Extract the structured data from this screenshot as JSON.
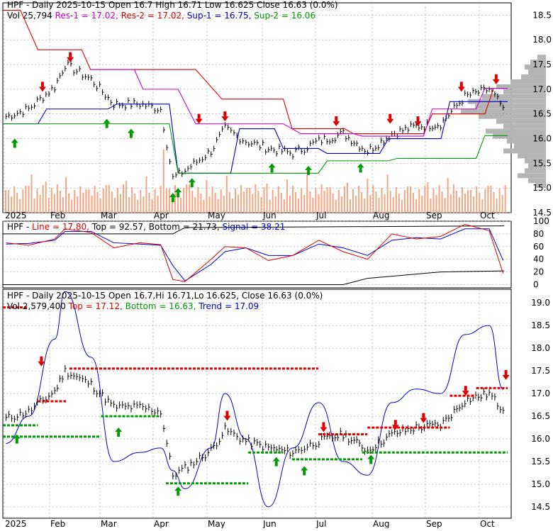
{
  "header": {
    "ticker": "HPF",
    "line1": "HPF - Daily 2025-10-15 Open 16.7  High 16.71  Low 16.625  Close 16.63 (0.0%)",
    "line2": [
      {
        "text": "Vol 25,794",
        "color": "#000000"
      },
      {
        "text": "Res-1 = 17.02,",
        "color": "#cc00cc"
      },
      {
        "text": "Res-2 = 17.02,",
        "color": "#dd0000"
      },
      {
        "text": "Sup-1 = 16.75,",
        "color": "#0000cc"
      },
      {
        "text": "Sup-2 = 16.06",
        "color": "#009900"
      }
    ]
  },
  "osc_header": [
    {
      "text": "HPF -",
      "color": "#000000"
    },
    {
      "text": "Line = 17.80,",
      "color": "#dd0000"
    },
    {
      "text": "Top = 92.57,",
      "color": "#000000"
    },
    {
      "text": "Bottom = 21.73,",
      "color": "#000000"
    },
    {
      "text": "Signal = 38.21",
      "color": "#0000cc"
    }
  ],
  "lower_header": {
    "line1": "HPF - Daily 2025-10-15 Open 16.7,Hi 16.71,Lo 16.625, Close 16.63 (0.0%)",
    "line2": [
      {
        "text": "Vol 2,579,400",
        "color": "#000000"
      },
      {
        "text": "Top = 17.12,",
        "color": "#dd0000"
      },
      {
        "text": "Bottom = 16.63,",
        "color": "#009900"
      },
      {
        "text": "Trend = 17.09",
        "color": "#0000cc"
      }
    ]
  },
  "colors": {
    "red": "#dd0000",
    "green": "#009900",
    "blue": "#0000cc",
    "magenta": "#cc00cc",
    "volume": "#f4a582",
    "profile": "#b4b4b4"
  },
  "chart_data": [
    {
      "type": "line",
      "panel": "price",
      "x": [
        "Jan 02",
        "Jan 15",
        "Jan 30",
        "Feb 05",
        "Feb 20",
        "Mar 05",
        "Mar 20",
        "Apr 01",
        "Apr 08",
        "Apr 15",
        "Apr 30",
        "May 08",
        "May 20",
        "Jun 02",
        "Jun 16",
        "Jul 01",
        "Jul 15",
        "Jul 29",
        "Aug 12",
        "Aug 26",
        "Sep 09",
        "Sep 23",
        "Oct 07",
        "Oct 15"
      ],
      "series": [
        {
          "values": [
            16.45,
            16.6,
            17.05,
            17.5,
            17.2,
            16.7,
            16.7,
            16.6,
            15.2,
            15.35,
            15.75,
            16.2,
            15.95,
            15.8,
            15.7,
            15.95,
            16.1,
            15.75,
            16.1,
            16.25,
            16.3,
            16.85,
            17.0,
            16.63
          ]
        }
      ],
      "volume_axis": "unlabeled",
      "ylim": [
        14.5,
        18.75
      ],
      "yticks": [
        14.5,
        15.0,
        15.5,
        16.0,
        16.5,
        17.0,
        17.5,
        18.0,
        18.5
      ],
      "xlabels": [
        "2025",
        "Feb",
        "Mar",
        "Apr",
        "May",
        "Jun",
        "Jul",
        "Aug",
        "Sep",
        "Oct"
      ],
      "arrows_down": [
        [
          "Jan 22",
          16.95
        ],
        [
          "Feb 07",
          17.55
        ],
        [
          "Apr 22",
          16.3
        ],
        [
          "May 07",
          16.35
        ],
        [
          "Jul 10",
          16.25
        ],
        [
          "Aug 10",
          16.3
        ],
        [
          "Aug 26",
          16.25
        ],
        [
          "Sep 20",
          16.95
        ],
        [
          "Oct 10",
          17.1
        ]
      ],
      "arrows_up": [
        [
          "Jan 06",
          16.0
        ],
        [
          "Feb 28",
          16.4
        ],
        [
          "Mar 14",
          16.2
        ],
        [
          "Apr 07",
          14.9
        ],
        [
          "Apr 10",
          15.0
        ],
        [
          "Apr 18",
          15.2
        ],
        [
          "Jun 03",
          15.5
        ],
        [
          "Jun 24",
          15.45
        ],
        [
          "Jul 24",
          15.5
        ]
      ]
    },
    {
      "type": "line",
      "panel": "oscillator",
      "ylim": [
        -5,
        100
      ],
      "yticks": [
        0,
        20,
        40,
        60,
        80,
        100
      ],
      "series": [
        {
          "name": "Line",
          "values": [
            66,
            62,
            72,
            88,
            82,
            58,
            66,
            63,
            8,
            5,
            40,
            60,
            58,
            38,
            46,
            70,
            52,
            40,
            80,
            72,
            76,
            95,
            85,
            17.8
          ]
        },
        {
          "name": "Signal",
          "values": [
            64,
            65,
            70,
            84,
            84,
            66,
            64,
            62,
            30,
            6,
            32,
            52,
            58,
            46,
            46,
            64,
            58,
            46,
            70,
            74,
            72,
            88,
            88,
            38.21
          ]
        }
      ],
      "top": 92.57,
      "bottom": 21.73
    },
    {
      "type": "line",
      "panel": "trend",
      "ylim": [
        14.25,
        19.3
      ],
      "yticks": [
        14.5,
        15.0,
        15.5,
        16.0,
        16.5,
        17.0,
        17.5,
        18.0,
        18.5,
        19.0
      ],
      "xlabels": [
        "2025",
        "Feb",
        "Mar",
        "Apr",
        "May",
        "Jun",
        "Jul",
        "Aug",
        "Sep",
        "Oct"
      ],
      "series": [
        {
          "name": "Price",
          "values": [
            16.45,
            16.6,
            17.05,
            17.5,
            17.2,
            16.7,
            16.7,
            16.6,
            15.2,
            15.35,
            15.75,
            16.2,
            15.95,
            15.8,
            15.7,
            15.95,
            16.1,
            15.75,
            16.1,
            16.25,
            16.3,
            16.85,
            17.0,
            16.63
          ]
        },
        {
          "name": "Trend",
          "values": [
            15.9,
            16.5,
            18.2,
            19.25,
            17.8,
            15.5,
            15.7,
            15.8,
            15.3,
            14.9,
            15.8,
            17.0,
            16.0,
            14.5,
            15.8,
            16.8,
            15.5,
            15.2,
            16.8,
            17.1,
            17.0,
            18.3,
            18.5,
            17.09
          ]
        }
      ]
    }
  ]
}
